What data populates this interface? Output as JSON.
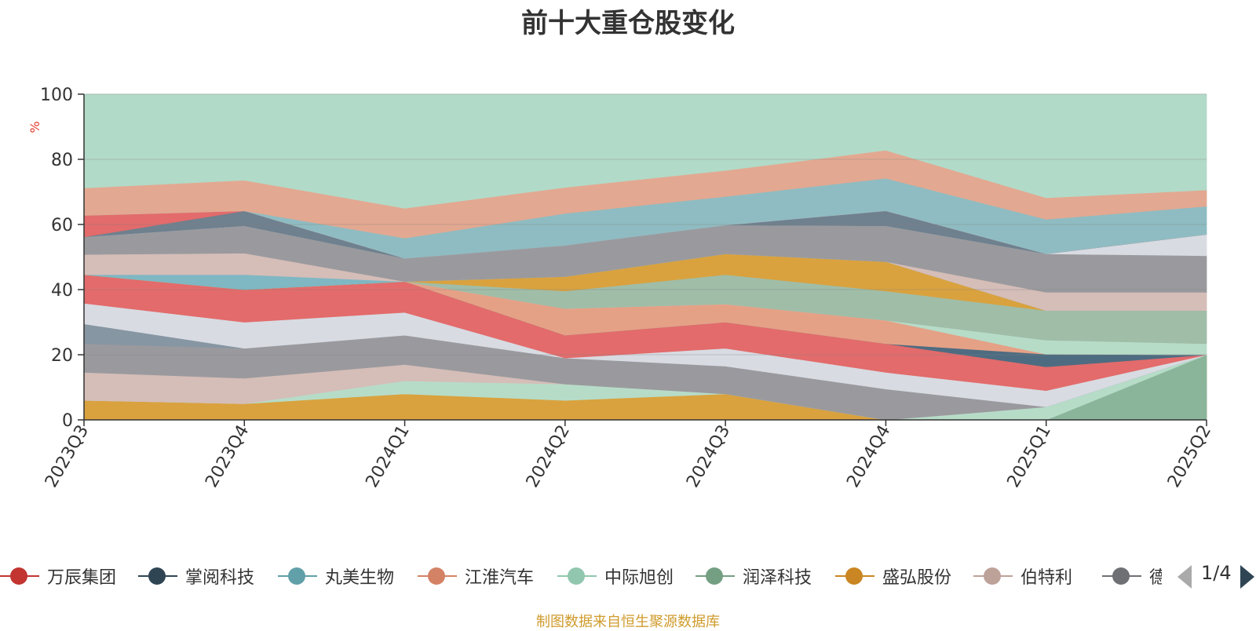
{
  "chart_data": {
    "type": "area",
    "title": "前十大重仓股变化",
    "ylabel": "%",
    "ylim": [
      0,
      100
    ],
    "yticks": [
      0,
      20,
      40,
      60,
      80,
      100
    ],
    "categories": [
      "2023Q3",
      "2023Q4",
      "2024Q1",
      "2024Q2",
      "2024Q3",
      "2024Q4",
      "2025Q1",
      "2025Q2"
    ],
    "layers": [
      {
        "color": "#9aa7b1",
        "name": "掌阅科技",
        "lower": [
          0,
          0,
          0,
          0,
          0,
          0,
          0,
          0
        ],
        "upper": [
          0,
          0,
          4,
          0,
          0,
          0,
          0,
          0
        ]
      },
      {
        "color": "#e5a186",
        "name": "江淮汽车",
        "lower": [
          0,
          0,
          4,
          0,
          0,
          0,
          0,
          0
        ],
        "upper": [
          0,
          5,
          8,
          6,
          8,
          0,
          0,
          0
        ]
      },
      {
        "color": "#d9a23e",
        "name": "盛弘股份",
        "lower": [
          0,
          0,
          0,
          0,
          0,
          0,
          0,
          0
        ],
        "upper": [
          6,
          5,
          8,
          6,
          8,
          0,
          0,
          0
        ]
      },
      {
        "color": "#e5a186",
        "name": "江淮汽车",
        "lower": [
          0,
          0,
          0,
          0,
          0,
          0,
          0,
          0
        ],
        "upper": [
          0,
          0,
          0,
          0,
          0,
          0,
          0,
          20
        ]
      },
      {
        "color": "#e36b6b",
        "name": "万辰集团",
        "lower": [
          0,
          0,
          0,
          0,
          0,
          0,
          0,
          0
        ],
        "upper": [
          0,
          0,
          0,
          0,
          0,
          0,
          0,
          7
        ]
      },
      {
        "color": "#6fb0bd",
        "name": "丸美生物",
        "lower": [
          0,
          0,
          0,
          0,
          0,
          0,
          0,
          7
        ],
        "upper": [
          0,
          0,
          0,
          0,
          0,
          0,
          0,
          11
        ]
      },
      {
        "color": "#8ab59a",
        "name": "润泽科技",
        "lower": [
          0,
          0,
          0,
          0,
          0,
          0,
          0,
          0
        ],
        "upper": [
          0,
          0,
          0,
          0,
          0,
          0,
          4,
          20
        ]
      },
      {
        "color": "#b6dcc8",
        "name": "中际旭创",
        "lower": [
          6,
          5,
          8,
          6,
          8,
          0,
          0,
          20
        ],
        "upper": [
          6,
          5,
          12,
          11,
          8,
          0,
          4,
          20
        ]
      },
      {
        "color": "#d5bdb8",
        "name": "伯特利",
        "lower": [
          6,
          5,
          12,
          11,
          8,
          0,
          4,
          20
        ],
        "upper": [
          14.6,
          12.8,
          17,
          11,
          8,
          0,
          4,
          20
        ]
      },
      {
        "color": "#9a9a9e",
        "name": "德业股份",
        "lower": [
          14.6,
          12.8,
          17,
          11,
          8,
          0,
          4,
          20
        ],
        "upper": [
          23.4,
          22,
          26,
          19,
          16.5,
          9.5,
          4,
          20
        ]
      },
      {
        "color": "#8796a3",
        "name": "",
        "lower": [
          23.4,
          22,
          26,
          19,
          16.5,
          9.5,
          4,
          20
        ],
        "upper": [
          29.5,
          22,
          26,
          19,
          16.5,
          9.5,
          4,
          20
        ]
      },
      {
        "color": "#d8dbe2",
        "name": "",
        "lower": [
          29.5,
          22,
          26,
          19,
          16.5,
          9.5,
          4,
          20
        ],
        "upper": [
          35.8,
          30,
          33,
          19,
          22,
          14.6,
          9,
          20
        ]
      },
      {
        "color": "#e36b6b",
        "name": "万辰集团",
        "lower": [
          35.8,
          30,
          33,
          19,
          22,
          14.6,
          9,
          20
        ],
        "upper": [
          44.6,
          40,
          42.5,
          26,
          30,
          23.4,
          16.3,
          20
        ]
      },
      {
        "color": "#4e6c81",
        "name": "掌阅科技",
        "lower": [
          44.6,
          40,
          42.5,
          26,
          30,
          23.4,
          16.3,
          20
        ],
        "upper": [
          44.6,
          40,
          42.5,
          26,
          30,
          23.4,
          20.2,
          20
        ]
      },
      {
        "color": "#e5a186",
        "name": "江淮汽车",
        "lower": [
          44.6,
          40,
          42.5,
          26,
          30,
          23.4,
          20.2,
          20
        ],
        "upper": [
          44.6,
          40,
          42.5,
          34.2,
          35.6,
          30.6,
          20.2,
          20
        ]
      },
      {
        "color": "#b6dcc8",
        "name": "中际旭创",
        "lower": [
          44.6,
          40,
          42.5,
          34.2,
          35.6,
          30.6,
          20.2,
          20
        ],
        "upper": [
          44.6,
          40,
          42.5,
          34.2,
          35.6,
          30.6,
          24.5,
          23.4
        ]
      },
      {
        "color": "#a0bda8",
        "name": "润泽科技",
        "lower": [
          44.6,
          40,
          42.5,
          34.2,
          35.6,
          30.6,
          24.5,
          23.4
        ],
        "upper": [
          44.6,
          40,
          42.5,
          39.6,
          44.6,
          39.6,
          33.6,
          33.6
        ]
      },
      {
        "color": "#d9a23e",
        "name": "盛弘股份",
        "lower": [
          44.6,
          40,
          42.5,
          39.6,
          44.6,
          39.6,
          33.6,
          33.6
        ],
        "upper": [
          44.6,
          40,
          42.5,
          44,
          51,
          48.6,
          33.6,
          33.6
        ]
      },
      {
        "color": "#7fb7c3",
        "name": "丸美生物",
        "lower": [
          44.6,
          40,
          42.5,
          44,
          51,
          48.6,
          33.6,
          33.6
        ],
        "upper": [
          44.6,
          44.6,
          42.5,
          44,
          51,
          48.6,
          33.6,
          33.6
        ]
      },
      {
        "color": "#d5bdb8",
        "name": "伯特利",
        "lower": [
          44.6,
          44.6,
          42.5,
          44,
          51,
          48.6,
          33.6,
          33.6
        ],
        "upper": [
          50.8,
          51.2,
          42.5,
          44,
          51,
          48.6,
          39.2,
          39.2
        ]
      },
      {
        "color": "#9a9a9e",
        "name": "德业股份",
        "lower": [
          50.8,
          51.2,
          42.5,
          44,
          51,
          48.6,
          39.2,
          39.2
        ],
        "upper": [
          56.2,
          59.6,
          49.6,
          53.6,
          59.8,
          59.6,
          51,
          50.4
        ]
      },
      {
        "color": "#d8dbe2",
        "name": "",
        "lower": [
          56.2,
          59.6,
          49.6,
          53.6,
          59.8,
          59.6,
          51,
          50.4
        ],
        "upper": [
          56.2,
          59.6,
          49.6,
          53.6,
          59.8,
          59.6,
          51,
          57
        ]
      },
      {
        "color": "#6f808e",
        "name": "",
        "lower": [
          56.2,
          59.6,
          49.6,
          53.6,
          59.8,
          59.6,
          51,
          57
        ],
        "upper": [
          56.2,
          64.2,
          49.6,
          53.6,
          59.8,
          64.2,
          51,
          57
        ]
      },
      {
        "color": "#e36b6b",
        "name": "万辰集团",
        "lower": [
          56.2,
          64.2,
          49.6,
          53.6,
          59.8,
          64.2,
          51,
          57
        ],
        "upper": [
          62.8,
          64.2,
          49.6,
          53.6,
          59.8,
          64.2,
          51,
          57
        ]
      },
      {
        "color": "#8fbcc2",
        "name": "丸美生物",
        "lower": [
          62.8,
          64.2,
          49.6,
          53.6,
          59.8,
          64.2,
          51,
          57
        ],
        "upper": [
          62.8,
          64.2,
          55.8,
          63.4,
          68.6,
          74.2,
          61.6,
          65.6
        ]
      },
      {
        "color": "#e3a891",
        "name": "江淮汽车",
        "lower": [
          62.8,
          64.2,
          55.8,
          63.4,
          68.6,
          74.2,
          61.6,
          65.6
        ],
        "upper": [
          71.2,
          73.6,
          65,
          71.4,
          76.6,
          82.8,
          68.2,
          70.6
        ]
      },
      {
        "color": "#b2dac8",
        "name": "中际旭创",
        "lower": [
          71.2,
          73.6,
          65,
          71.4,
          76.6,
          82.8,
          68.2,
          70.6
        ],
        "upper": [
          100,
          100,
          100,
          100,
          100,
          100,
          100,
          100
        ]
      }
    ]
  },
  "legend": {
    "items": [
      {
        "label": "万辰集团",
        "color": "#c23531"
      },
      {
        "label": "掌阅科技",
        "color": "#2f4554"
      },
      {
        "label": "丸美生物",
        "color": "#61a0a8"
      },
      {
        "label": "江淮汽车",
        "color": "#d48265"
      },
      {
        "label": "中际旭创",
        "color": "#91c7ae"
      },
      {
        "label": "润泽科技",
        "color": "#749f83"
      },
      {
        "label": "盛弘股份",
        "color": "#ca8622"
      },
      {
        "label": "伯特利",
        "color": "#bda29a"
      },
      {
        "label": "德",
        "color": "#6e7074"
      }
    ],
    "page": "1/4"
  },
  "source_note": "制图数据来自恒生聚源数据库"
}
